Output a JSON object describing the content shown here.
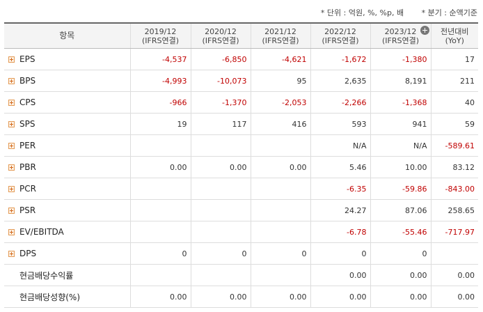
{
  "notes": {
    "unit": "* 단위 : 억원, %, %p, 배",
    "period": "* 분기 : 순액기준"
  },
  "header": {
    "item": "항목",
    "columns": [
      {
        "line1": "2019/12",
        "line2": "(IFRS연결)"
      },
      {
        "line1": "2020/12",
        "line2": "(IFRS연결)"
      },
      {
        "line1": "2021/12",
        "line2": "(IFRS연결)"
      },
      {
        "line1": "2022/12",
        "line2": "(IFRS연결)"
      },
      {
        "line1": "2023/12",
        "line2": "(IFRS연결)"
      },
      {
        "line1": "전년대비",
        "line2": "(YoY)"
      }
    ]
  },
  "rows": [
    {
      "label": "EPS",
      "expandable": true,
      "values": [
        "-4,537",
        "-6,850",
        "-4,621",
        "-1,672",
        "-1,380",
        "17"
      ]
    },
    {
      "label": "BPS",
      "expandable": true,
      "values": [
        "-4,993",
        "-10,073",
        "95",
        "2,635",
        "8,191",
        "211"
      ]
    },
    {
      "label": "CPS",
      "expandable": true,
      "values": [
        "-966",
        "-1,370",
        "-2,053",
        "-2,266",
        "-1,368",
        "40"
      ]
    },
    {
      "label": "SPS",
      "expandable": true,
      "values": [
        "19",
        "117",
        "416",
        "593",
        "941",
        "59"
      ]
    },
    {
      "label": "PER",
      "expandable": true,
      "values": [
        "",
        "",
        "",
        "N/A",
        "N/A",
        "-589.61"
      ]
    },
    {
      "label": "PBR",
      "expandable": true,
      "values": [
        "0.00",
        "0.00",
        "0.00",
        "5.46",
        "10.00",
        "83.12"
      ]
    },
    {
      "label": "PCR",
      "expandable": true,
      "values": [
        "",
        "",
        "",
        "-6.35",
        "-59.86",
        "-843.00"
      ]
    },
    {
      "label": "PSR",
      "expandable": true,
      "values": [
        "",
        "",
        "",
        "24.27",
        "87.06",
        "258.65"
      ]
    },
    {
      "label": "EV/EBITDA",
      "expandable": true,
      "values": [
        "",
        "",
        "",
        "-6.78",
        "-55.46",
        "-717.97"
      ]
    },
    {
      "label": "DPS",
      "expandable": true,
      "values": [
        "0",
        "0",
        "0",
        "0",
        "0",
        ""
      ]
    },
    {
      "label": "현금배당수익률",
      "expandable": false,
      "values": [
        "",
        "",
        "",
        "0.00",
        "0.00",
        "0.00"
      ]
    },
    {
      "label": "현금배당성향(%)",
      "expandable": false,
      "values": [
        "0.00",
        "0.00",
        "0.00",
        "0.00",
        "0.00",
        "0.00"
      ]
    }
  ]
}
